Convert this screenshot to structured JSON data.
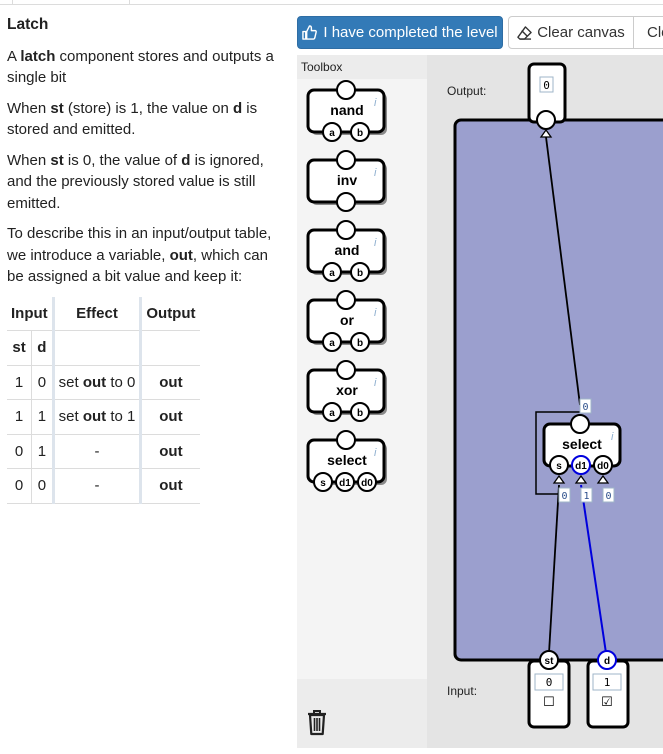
{
  "description": {
    "title": "Latch",
    "p1_pre": "A ",
    "p1_bold": "latch",
    "p1_post": " component stores and outputs a single bit",
    "p2": [
      "When ",
      "st",
      " (store) is 1, the value on ",
      "d",
      " is stored and emitted."
    ],
    "p3": [
      "When ",
      "st",
      " is 0, the value of ",
      "d",
      " is ignored, and the previously stored value is still emitted."
    ],
    "p4": [
      "To describe this in an input/output table, we introduce a variable, ",
      "out",
      ", which can be assigned a bit value and keep it:"
    ]
  },
  "table": {
    "headers": [
      "Input",
      "Effect",
      "Output"
    ],
    "subheaders": [
      "st",
      "d"
    ],
    "rows": [
      {
        "st": "1",
        "d": "0",
        "effect_pre": "set ",
        "effect_bold": "out",
        "effect_post": " to 0",
        "output": "out"
      },
      {
        "st": "1",
        "d": "1",
        "effect_pre": "set ",
        "effect_bold": "out",
        "effect_post": " to 1",
        "output": "out"
      },
      {
        "st": "0",
        "d": "1",
        "effect_pre": "",
        "effect_bold": "",
        "effect_post": "-",
        "output": "out"
      },
      {
        "st": "0",
        "d": "0",
        "effect_pre": "",
        "effect_bold": "",
        "effect_post": "-",
        "output": "out"
      }
    ]
  },
  "toolbar": {
    "complete_label": "I have completed the level",
    "clear_label": "Clear canvas",
    "clear2_label": "Cle"
  },
  "toolbox": {
    "label": "Toolbox",
    "info_glyph": "i",
    "components": [
      {
        "name": "nand",
        "pins": [
          "a",
          "b"
        ]
      },
      {
        "name": "inv",
        "pins": []
      },
      {
        "name": "and",
        "pins": [
          "a",
          "b"
        ]
      },
      {
        "name": "or",
        "pins": [
          "a",
          "b"
        ]
      },
      {
        "name": "xor",
        "pins": [
          "a",
          "b"
        ]
      },
      {
        "name": "select",
        "pins": [
          "s",
          "d1",
          "d0"
        ]
      }
    ]
  },
  "canvas": {
    "output_label": "Output:",
    "input_label": "Input:",
    "output_value": "0",
    "select_node": {
      "name": "select",
      "info": "i",
      "pins": [
        "s",
        "d1",
        "d0"
      ],
      "out_value": "0",
      "pin_values": [
        "0",
        "1",
        "0"
      ]
    },
    "inputs": [
      {
        "name": "st",
        "value": "0",
        "checkbox": "☐"
      },
      {
        "name": "d",
        "value": "1",
        "checkbox": "☑"
      }
    ]
  },
  "colors": {
    "primary_button": "#337ab7",
    "canvas_component": "#9b9fce",
    "active_wire": "#0000dd"
  }
}
